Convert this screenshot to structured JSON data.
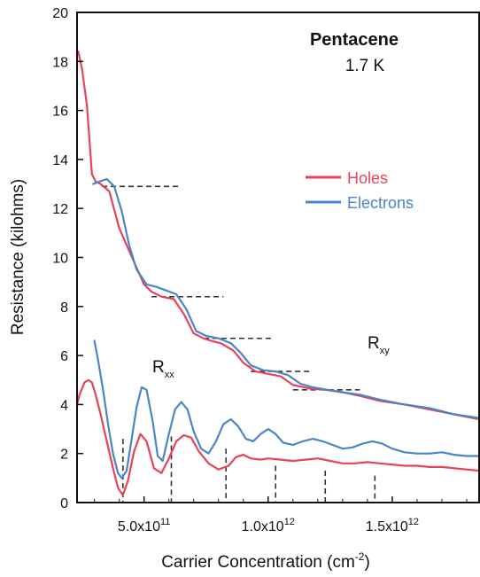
{
  "chart_data": {
    "type": "line",
    "title": "Pentacene",
    "subtitle": "1.7 K",
    "xlabel": "Carrier Concentration (cm",
    "xlabel_sup": "-2",
    "xlabel_end": ")",
    "ylabel": "Resistance (kilohms)",
    "xlim": [
      230000000000.0,
      1850000000000.0
    ],
    "ylim": [
      0,
      20
    ],
    "x_ticks": [
      {
        "value": 500000000000.0,
        "mant": "5.0x10",
        "exp": "11"
      },
      {
        "value": 1000000000000.0,
        "mant": "1.0x10",
        "exp": "12"
      },
      {
        "value": 1500000000000.0,
        "mant": "1.5x10",
        "exp": "12"
      }
    ],
    "y_ticks": [
      0,
      2,
      4,
      6,
      8,
      10,
      12,
      14,
      16,
      18,
      20
    ],
    "legend": {
      "placement": "upper-right",
      "items": [
        {
          "label": "Holes",
          "color": "#e8425a"
        },
        {
          "label": "Electrons",
          "color": "#4a86c5"
        }
      ]
    },
    "annotations": [
      {
        "main": "R",
        "sub": "xx"
      },
      {
        "main": "R",
        "sub": "xy"
      }
    ],
    "series": [
      {
        "name": "Holes",
        "role": "Rxy",
        "color": "#e8425a",
        "x": [
          235000000000.0,
          250000000000.0,
          270000000000.0,
          290000000000.0,
          305000000000.0,
          325000000000.0,
          360000000000.0,
          400000000000.0,
          460000000000.0,
          500000000000.0,
          530000000000.0,
          570000000000.0,
          620000000000.0,
          660000000000.0,
          700000000000.0,
          740000000000.0,
          770000000000.0,
          810000000000.0,
          860000000000.0,
          900000000000.0,
          950000000000.0,
          1000000000000.0,
          1050000000000.0,
          1100000000000.0,
          1170000000000.0,
          1230000000000.0,
          1300000000000.0,
          1370000000000.0,
          1450000000000.0,
          1550000000000.0,
          1650000000000.0,
          1750000000000.0,
          1850000000000.0
        ],
        "y": [
          18.4,
          17.7,
          16.2,
          13.4,
          13.1,
          13.0,
          12.7,
          11.2,
          9.8,
          8.9,
          8.6,
          8.4,
          8.3,
          7.7,
          6.9,
          6.7,
          6.6,
          6.5,
          6.2,
          5.7,
          5.35,
          5.25,
          5.15,
          4.8,
          4.65,
          4.6,
          4.5,
          4.35,
          4.15,
          4.0,
          3.8,
          3.6,
          3.4
        ]
      },
      {
        "name": "Electrons",
        "role": "Rxy",
        "color": "#4a86c5",
        "x": [
          295000000000.0,
          320000000000.0,
          350000000000.0,
          380000000000.0,
          410000000000.0,
          440000000000.0,
          470000000000.0,
          510000000000.0,
          550000000000.0,
          590000000000.0,
          630000000000.0,
          670000000000.0,
          710000000000.0,
          750000000000.0,
          800000000000.0,
          850000000000.0,
          890000000000.0,
          930000000000.0,
          980000000000.0,
          1030000000000.0,
          1080000000000.0,
          1130000000000.0,
          1180000000000.0,
          1240000000000.0,
          1300000000000.0,
          1370000000000.0,
          1450000000000.0,
          1550000000000.0,
          1650000000000.0,
          1750000000000.0,
          1850000000000.0
        ],
        "y": [
          13.0,
          13.1,
          13.2,
          12.9,
          11.9,
          10.5,
          9.5,
          8.9,
          8.8,
          8.65,
          8.5,
          7.9,
          7.0,
          6.8,
          6.7,
          6.5,
          6.1,
          5.6,
          5.4,
          5.35,
          5.2,
          4.85,
          4.7,
          4.6,
          4.5,
          4.4,
          4.2,
          4.0,
          3.85,
          3.6,
          3.45
        ]
      },
      {
        "name": "Holes",
        "role": "Rxx",
        "color": "#e8425a",
        "x": [
          230000000000.0,
          240000000000.0,
          260000000000.0,
          275000000000.0,
          290000000000.0,
          305000000000.0,
          325000000000.0,
          350000000000.0,
          375000000000.0,
          395000000000.0,
          415000000000.0,
          435000000000.0,
          460000000000.0,
          485000000000.0,
          510000000000.0,
          540000000000.0,
          570000000000.0,
          600000000000.0,
          630000000000.0,
          660000000000.0,
          690000000000.0,
          720000000000.0,
          760000000000.0,
          800000000000.0,
          840000000000.0,
          870000000000.0,
          900000000000.0,
          930000000000.0,
          970000000000.0,
          1000000000000.0,
          1050000000000.0,
          1100000000000.0,
          1150000000000.0,
          1200000000000.0,
          1250000000000.0,
          1300000000000.0,
          1350000000000.0,
          1400000000000.0,
          1450000000000.0,
          1500000000000.0,
          1550000000000.0,
          1600000000000.0,
          1650000000000.0,
          1700000000000.0,
          1750000000000.0,
          1800000000000.0,
          1850000000000.0
        ],
        "y": [
          4.0,
          4.4,
          4.9,
          5.0,
          4.9,
          4.4,
          3.6,
          2.5,
          1.4,
          0.6,
          0.3,
          0.9,
          2.1,
          2.8,
          2.5,
          1.4,
          1.2,
          1.8,
          2.5,
          2.75,
          2.65,
          2.1,
          1.6,
          1.35,
          1.5,
          1.85,
          1.95,
          1.8,
          1.75,
          1.8,
          1.75,
          1.7,
          1.75,
          1.8,
          1.7,
          1.6,
          1.6,
          1.65,
          1.6,
          1.55,
          1.5,
          1.5,
          1.45,
          1.45,
          1.4,
          1.35,
          1.3
        ]
      },
      {
        "name": "Electrons",
        "role": "Rxx",
        "color": "#4a86c5",
        "x": [
          300000000000.0,
          315000000000.0,
          335000000000.0,
          355000000000.0,
          375000000000.0,
          395000000000.0,
          410000000000.0,
          430000000000.0,
          450000000000.0,
          470000000000.0,
          490000000000.0,
          510000000000.0,
          535000000000.0,
          555000000000.0,
          575000000000.0,
          600000000000.0,
          625000000000.0,
          650000000000.0,
          675000000000.0,
          700000000000.0,
          730000000000.0,
          760000000000.0,
          790000000000.0,
          820000000000.0,
          850000000000.0,
          880000000000.0,
          910000000000.0,
          940000000000.0,
          970000000000.0,
          1000000000000.0,
          1030000000000.0,
          1060000000000.0,
          1100000000000.0,
          1140000000000.0,
          1180000000000.0,
          1220000000000.0,
          1260000000000.0,
          1300000000000.0,
          1340000000000.0,
          1380000000000.0,
          1420000000000.0,
          1460000000000.0,
          1500000000000.0,
          1550000000000.0,
          1600000000000.0,
          1650000000000.0,
          1700000000000.0,
          1750000000000.0,
          1800000000000.0,
          1850000000000.0
        ],
        "y": [
          6.6,
          5.8,
          4.6,
          3.2,
          2.0,
          1.2,
          1.0,
          1.3,
          2.6,
          3.9,
          4.7,
          4.6,
          3.3,
          1.9,
          1.7,
          2.8,
          3.8,
          4.1,
          3.8,
          2.9,
          2.2,
          2.0,
          2.5,
          3.2,
          3.4,
          3.1,
          2.6,
          2.5,
          2.8,
          3.0,
          2.8,
          2.45,
          2.35,
          2.5,
          2.6,
          2.5,
          2.35,
          2.2,
          2.25,
          2.4,
          2.5,
          2.4,
          2.2,
          2.05,
          2.0,
          2.0,
          2.05,
          1.95,
          1.9,
          1.9
        ]
      }
    ],
    "plateau_guides": [
      {
        "x0": 330000000000.0,
        "x1": 650000000000.0,
        "y": 12.9
      },
      {
        "x0": 530000000000.0,
        "x1": 820000000000.0,
        "y": 8.4
      },
      {
        "x0": 740000000000.0,
        "x1": 1020000000000.0,
        "y": 6.7
      },
      {
        "x0": 930000000000.0,
        "x1": 1180000000000.0,
        "y": 5.35
      },
      {
        "x0": 1100000000000.0,
        "x1": 1370000000000.0,
        "y": 4.6
      }
    ],
    "minima_guides": [
      {
        "x": 415000000000.0,
        "y": 2.6
      },
      {
        "x": 610000000000.0,
        "y": 2.7
      },
      {
        "x": 830000000000.0,
        "y": 2.2
      },
      {
        "x": 1030000000000.0,
        "y": 1.5
      },
      {
        "x": 1230000000000.0,
        "y": 1.3
      },
      {
        "x": 1430000000000.0,
        "y": 1.1
      }
    ]
  }
}
